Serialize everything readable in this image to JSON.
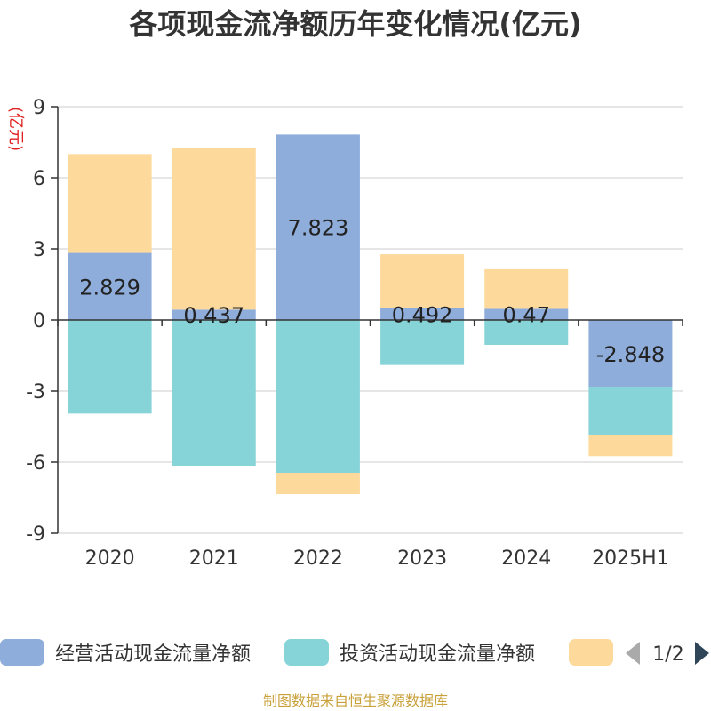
{
  "chart_data": {
    "type": "bar",
    "stacked": true,
    "title": "各项现金流净额历年变化情况(亿元)",
    "yunit": "(亿元)",
    "categories": [
      "2020",
      "2021",
      "2022",
      "2023",
      "2024",
      "2025H1"
    ],
    "ylim": [
      -9,
      9
    ],
    "yticks": [
      9,
      6,
      3,
      0,
      -3,
      -6,
      -9
    ],
    "grid": true,
    "series": [
      {
        "name": "经营活动现金流量净额",
        "color": "#8eaddb",
        "values": [
          2.829,
          0.437,
          7.823,
          0.492,
          0.47,
          -2.848
        ],
        "labels": [
          "2.829",
          "0.437",
          "7.823",
          "0.492",
          "0.47",
          "-2.848"
        ]
      },
      {
        "name": "投资活动现金流量净额",
        "color": "#86d4d8",
        "values": [
          -3.95,
          -6.15,
          -6.45,
          -1.9,
          -1.05,
          -2.0
        ]
      },
      {
        "name": "",
        "color": "#fdd99b",
        "values": [
          4.17,
          6.83,
          -0.9,
          2.28,
          1.67,
          -0.9
        ]
      }
    ],
    "legend_position": "bottom",
    "legend_page": "1/2"
  },
  "source": "制图数据来自恒生聚源数据库"
}
